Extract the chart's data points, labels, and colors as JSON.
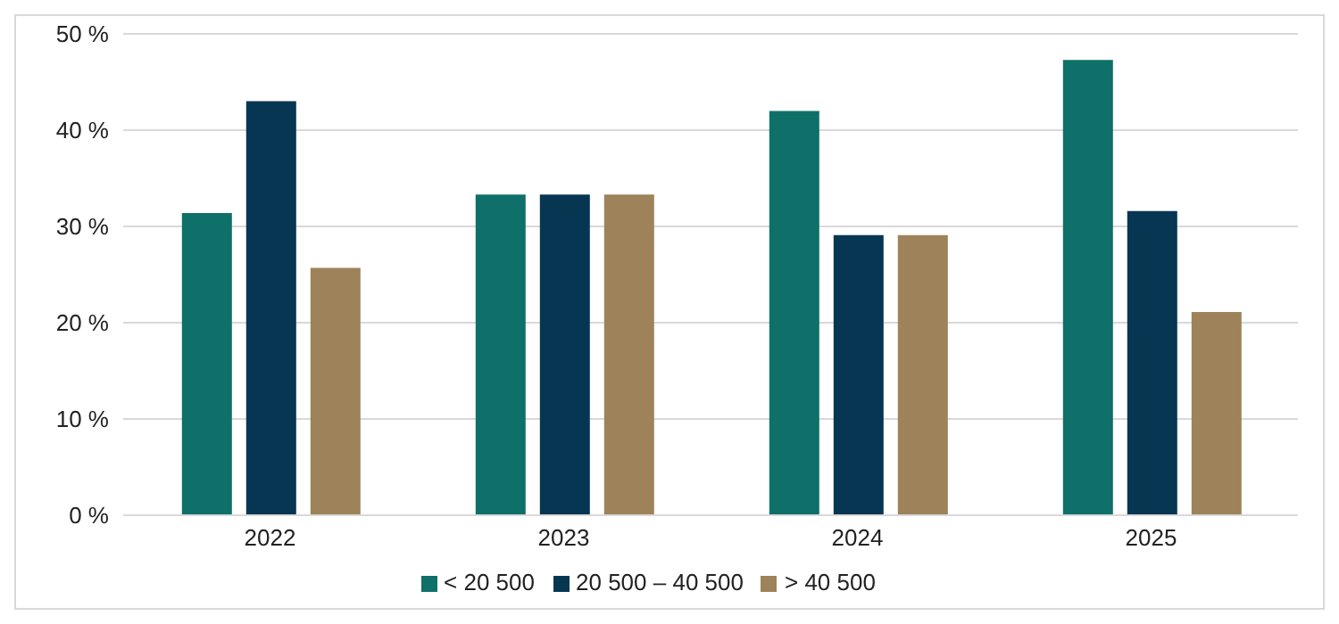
{
  "chart_data": {
    "type": "bar",
    "categories": [
      "2022",
      "2023",
      "2024",
      "2025"
    ],
    "series": [
      {
        "name": "< 20 500",
        "color": "#0e7068",
        "values": [
          31.4,
          33.3,
          42.0,
          47.3
        ]
      },
      {
        "name": "20 500 – 40 500",
        "color": "#073652",
        "values": [
          43.0,
          33.3,
          29.1,
          31.6
        ]
      },
      {
        "name": "> 40 500",
        "color": "#9e825a",
        "values": [
          25.7,
          33.3,
          29.1,
          21.1
        ]
      }
    ],
    "ylim": [
      0,
      50
    ],
    "yticks": [
      {
        "value": 0,
        "label": "0 %"
      },
      {
        "value": 10,
        "label": "10 %"
      },
      {
        "value": 20,
        "label": "20 %"
      },
      {
        "value": 30,
        "label": "30 %"
      },
      {
        "value": 40,
        "label": "40 %"
      },
      {
        "value": 50,
        "label": "50 %"
      }
    ],
    "grid": "y",
    "legend": "bottom"
  }
}
